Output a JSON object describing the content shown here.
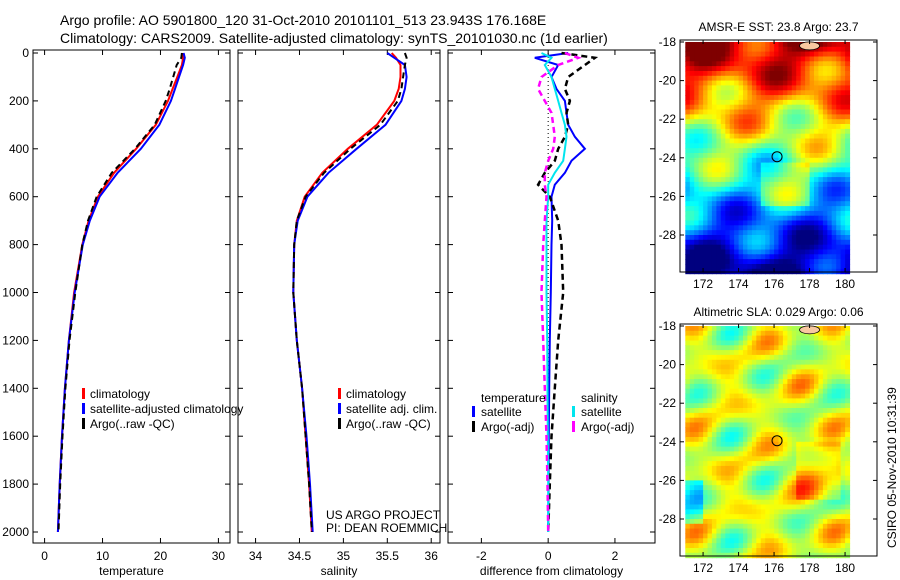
{
  "title_line1": "Argo profile: AO 5901800_120 31-Oct-2010 20101101_513 23.943S 176.168E",
  "title_line2": "Climatology: CARS2009. Satellite-adjusted climatology: synTS_20101030.nc (1d earlier)",
  "credit": [
    "US ARGO PROJECT",
    "PI: DEAN ROEMMICH"
  ],
  "timestamp": "CSIRO 05-Nov-2010 10:31:39",
  "colors": {
    "climatology": "#ff0000",
    "satellite": "#0000ff",
    "argo": "#000000",
    "sal_satellite": "#00e5ee",
    "sal_argo": "#ff00ff"
  },
  "chart_data": [
    {
      "type": "line",
      "xlabel": "temperature",
      "ylabel": "",
      "xlim": [
        -2,
        32
      ],
      "ylim": [
        2060,
        0
      ],
      "xticks": [
        "0",
        "10",
        "20",
        "30"
      ],
      "yticks": [
        "0",
        "200",
        "400",
        "600",
        "800",
        "1000",
        "1200",
        "1400",
        "1600",
        "1800",
        "2000"
      ],
      "legend": [
        "climatology",
        "satellite-adjusted climatology",
        "Argo(..raw -QC)"
      ],
      "depth": [
        0,
        20,
        50,
        100,
        150,
        200,
        300,
        400,
        500,
        600,
        700,
        800,
        1000,
        1200,
        1400,
        1600,
        1800,
        2000
      ],
      "series": [
        {
          "name": "climatology",
          "values": [
            23.8,
            23.9,
            23.7,
            22.9,
            22.1,
            21.3,
            19.2,
            15.8,
            12.0,
            9.2,
            7.6,
            6.5,
            5.1,
            4.2,
            3.5,
            3.0,
            2.6,
            2.3
          ]
        },
        {
          "name": "satellite-adjusted climatology",
          "values": [
            24.0,
            24.2,
            23.9,
            23.2,
            22.5,
            21.8,
            19.8,
            16.6,
            12.6,
            9.5,
            7.8,
            6.6,
            5.2,
            4.2,
            3.5,
            3.0,
            2.6,
            2.3
          ]
        },
        {
          "name": "Argo(..raw -QC)",
          "values": [
            23.7,
            23.6,
            22.8,
            22.2,
            21.6,
            20.9,
            19.0,
            15.6,
            11.6,
            9.0,
            7.5,
            6.5,
            5.3,
            4.3,
            3.6,
            3.1,
            2.7,
            2.4
          ]
        }
      ]
    },
    {
      "type": "line",
      "xlabel": "salinity",
      "xlim": [
        33.8,
        36.1
      ],
      "ylim": [
        2060,
        0
      ],
      "xticks": [
        "34",
        "34.5",
        "35",
        "35.5",
        "36"
      ],
      "legend": [
        "climatology",
        "satellite adj. clim.",
        "Argo(..raw -QC)"
      ],
      "depth": [
        0,
        20,
        50,
        100,
        150,
        200,
        300,
        400,
        500,
        600,
        700,
        800,
        1000,
        1200,
        1400,
        1600,
        1800,
        2000
      ],
      "series": [
        {
          "name": "climatology",
          "values": [
            35.55,
            35.6,
            35.65,
            35.65,
            35.63,
            35.58,
            35.38,
            35.05,
            34.76,
            34.56,
            34.47,
            34.44,
            34.43,
            34.47,
            34.53,
            34.57,
            34.61,
            34.64
          ]
        },
        {
          "name": "satellite adj. clim.",
          "values": [
            35.5,
            35.58,
            35.7,
            35.72,
            35.7,
            35.66,
            35.48,
            35.15,
            34.83,
            34.59,
            34.48,
            34.44,
            34.43,
            34.47,
            34.53,
            34.58,
            34.62,
            34.65
          ]
        },
        {
          "name": "Argo(..raw -QC)",
          "values": [
            35.7,
            35.72,
            35.7,
            35.68,
            35.66,
            35.62,
            35.42,
            35.08,
            34.78,
            34.57,
            34.47,
            34.44,
            34.43,
            34.47,
            34.53,
            34.57,
            34.61,
            34.64
          ]
        }
      ]
    },
    {
      "type": "line",
      "xlabel": "difference from climatology",
      "xlim": [
        -3,
        3.2
      ],
      "ylim": [
        2060,
        0
      ],
      "xticks": [
        "-2",
        "0",
        "2"
      ],
      "legend_headers": [
        "temperature",
        "salinity"
      ],
      "legend": [
        "satellite",
        "Argo(-adj)",
        "satellite",
        "Argo(-adj)"
      ],
      "depth": [
        0,
        20,
        50,
        100,
        150,
        200,
        250,
        300,
        350,
        400,
        450,
        500,
        550,
        600,
        700,
        800,
        1000,
        1200,
        1400,
        1600,
        1800,
        2000
      ],
      "series": [
        {
          "name": "temperature satellite",
          "values": [
            0.6,
            -0.4,
            0.3,
            0.1,
            0.25,
            0.5,
            0.55,
            0.6,
            0.8,
            1.1,
            0.7,
            0.5,
            0.2,
            0.1,
            0.12,
            0.1,
            0.08,
            0.05,
            0.03,
            0.02,
            0.01,
            0.0
          ]
        },
        {
          "name": "temperature Argo(-adj)",
          "values": [
            0.4,
            1.4,
            1.1,
            0.6,
            0.5,
            0.65,
            0.55,
            0.6,
            0.5,
            0.3,
            0.2,
            -0.1,
            -0.3,
            0.05,
            0.3,
            0.4,
            0.45,
            0.3,
            0.2,
            0.1,
            0.05,
            0.0
          ]
        },
        {
          "name": "salinity satellite",
          "values": [
            -0.2,
            0.1,
            -0.1,
            0.1,
            0.2,
            0.3,
            0.4,
            0.5,
            0.55,
            0.5,
            0.45,
            0.2,
            0.0,
            0.0,
            -0.05,
            -0.05,
            -0.05,
            -0.03,
            -0.02,
            -0.01,
            0.0,
            0.0
          ]
        },
        {
          "name": "salinity Argo(-adj)",
          "values": [
            0.5,
            0.9,
            0.3,
            -0.2,
            -0.3,
            -0.1,
            0.1,
            0.15,
            0.2,
            0.15,
            0.0,
            -0.1,
            -0.1,
            -0.05,
            -0.1,
            -0.15,
            -0.2,
            -0.15,
            -0.1,
            -0.05,
            -0.02,
            0.0
          ]
        }
      ]
    },
    {
      "type": "heatmap",
      "title": "AMSR-E SST: 23.8 Argo: 23.7",
      "xlim": [
        170.7,
        181.8
      ],
      "ylim": [
        18,
        30
      ],
      "xticks": [
        "172",
        "174",
        "176",
        "178",
        "180"
      ],
      "yticks": [
        "18",
        "20",
        "22",
        "24",
        "26",
        "28"
      ],
      "marker": {
        "lon": 176.168,
        "lat": -23.943
      },
      "range": [
        20,
        27
      ]
    },
    {
      "type": "heatmap",
      "title": "Altimetric SLA: 0.029 Argo: 0.06",
      "xlim": [
        170.7,
        181.8
      ],
      "ylim": [
        18,
        30
      ],
      "xticks": [
        "172",
        "174",
        "176",
        "178",
        "180"
      ],
      "yticks": [
        "18",
        "20",
        "22",
        "24",
        "26",
        "28"
      ],
      "marker": {
        "lon": 176.168,
        "lat": -23.943
      },
      "range": [
        -0.3,
        0.3
      ]
    }
  ]
}
